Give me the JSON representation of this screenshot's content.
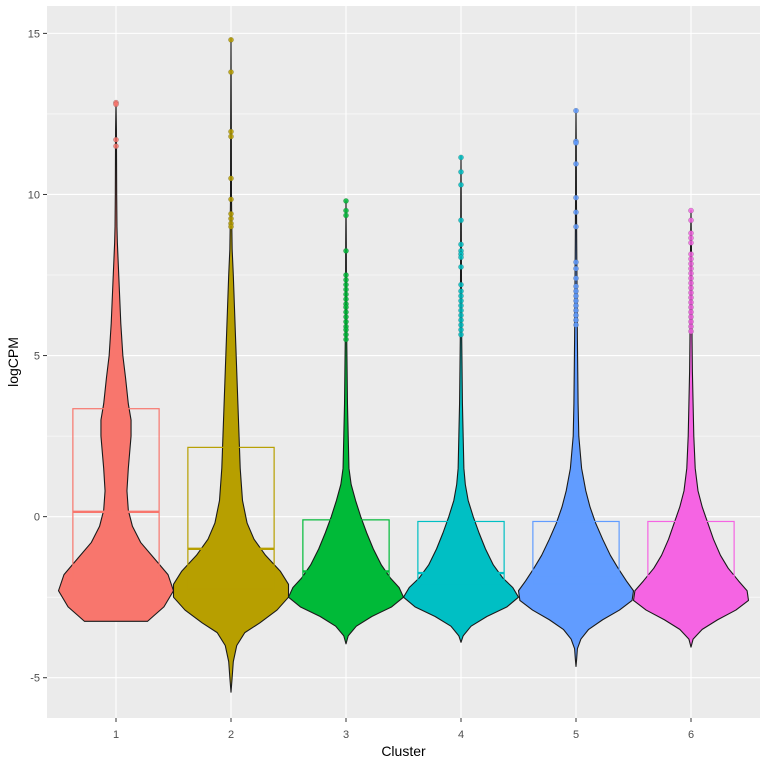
{
  "chart_data": {
    "type": "violin",
    "title": "",
    "xlabel": "Cluster",
    "ylabel": "logCPM",
    "ylim": [
      -6.25,
      15.85
    ],
    "yticks": [
      -5,
      0,
      5,
      10,
      15
    ],
    "categories": [
      "1",
      "2",
      "3",
      "4",
      "5",
      "6"
    ],
    "grid": true,
    "background": "#ebebeb",
    "colors": [
      "#f8766d",
      "#b79f00",
      "#00ba38",
      "#00bfc4",
      "#619cff",
      "#f564e3"
    ],
    "boxes": [
      {
        "cluster": "1",
        "q1": -2.0,
        "median": 0.15,
        "q3": 3.35
      },
      {
        "cluster": "2",
        "q1": -2.25,
        "median": -1.0,
        "q3": 2.15
      },
      {
        "cluster": "3",
        "q1": -2.1,
        "median": -1.7,
        "q3": -0.1
      },
      {
        "cluster": "4",
        "q1": -2.1,
        "median": -1.75,
        "q3": -0.15
      },
      {
        "cluster": "5",
        "q1": -2.1,
        "median": -1.9,
        "q3": -0.15
      },
      {
        "cluster": "6",
        "q1": -2.1,
        "median": -1.85,
        "q3": -0.15
      }
    ],
    "violins": [
      {
        "cluster": "1",
        "profile": [
          [
            -3.25,
            0.23
          ],
          [
            -3.1,
            0.27
          ],
          [
            -2.8,
            0.35
          ],
          [
            -2.3,
            0.42
          ],
          [
            -1.8,
            0.38
          ],
          [
            -1.3,
            0.28
          ],
          [
            -0.8,
            0.18
          ],
          [
            -0.3,
            0.12
          ],
          [
            0.2,
            0.09
          ],
          [
            0.8,
            0.08
          ],
          [
            1.5,
            0.09
          ],
          [
            2.5,
            0.11
          ],
          [
            3.0,
            0.11
          ],
          [
            3.5,
            0.09
          ],
          [
            4.3,
            0.07
          ],
          [
            5.0,
            0.05
          ],
          [
            6.0,
            0.035
          ],
          [
            7.0,
            0.025
          ],
          [
            8.0,
            0.015
          ],
          [
            8.5,
            0.01
          ],
          [
            9.0,
            0.007
          ],
          [
            10.0,
            0.005
          ],
          [
            11.0,
            0.004
          ],
          [
            12.0,
            0.003
          ],
          [
            12.85,
            0.0
          ]
        ]
      },
      {
        "cluster": "2",
        "profile": [
          [
            -5.45,
            0.0
          ],
          [
            -5.0,
            0.01
          ],
          [
            -4.5,
            0.02
          ],
          [
            -4.0,
            0.05
          ],
          [
            -3.6,
            0.12
          ],
          [
            -3.3,
            0.25
          ],
          [
            -2.9,
            0.4
          ],
          [
            -2.5,
            0.5
          ],
          [
            -2.1,
            0.5
          ],
          [
            -1.7,
            0.43
          ],
          [
            -1.2,
            0.3
          ],
          [
            -0.7,
            0.2
          ],
          [
            -0.2,
            0.14
          ],
          [
            0.5,
            0.1
          ],
          [
            1.5,
            0.08
          ],
          [
            2.5,
            0.07
          ],
          [
            3.5,
            0.06
          ],
          [
            4.5,
            0.05
          ],
          [
            5.5,
            0.04
          ],
          [
            6.5,
            0.03
          ],
          [
            7.5,
            0.02
          ],
          [
            8.3,
            0.01
          ],
          [
            9.0,
            0.007
          ],
          [
            10.0,
            0.004
          ],
          [
            12.0,
            0.003
          ],
          [
            14.85,
            0.0
          ]
        ]
      },
      {
        "cluster": "3",
        "profile": [
          [
            -3.95,
            0.0
          ],
          [
            -3.7,
            0.03
          ],
          [
            -3.4,
            0.14
          ],
          [
            -3.1,
            0.35
          ],
          [
            -2.8,
            0.62
          ],
          [
            -2.5,
            0.78
          ],
          [
            -2.2,
            0.72
          ],
          [
            -1.9,
            0.6
          ],
          [
            -1.5,
            0.48
          ],
          [
            -1.0,
            0.37
          ],
          [
            -0.5,
            0.28
          ],
          [
            0.0,
            0.2
          ],
          [
            0.5,
            0.13
          ],
          [
            1.0,
            0.07
          ],
          [
            1.5,
            0.04
          ],
          [
            2.5,
            0.03
          ],
          [
            3.5,
            0.02
          ],
          [
            4.5,
            0.015
          ],
          [
            5.5,
            0.01
          ],
          [
            7.0,
            0.006
          ],
          [
            8.5,
            0.004
          ],
          [
            9.8,
            0.0
          ]
        ]
      },
      {
        "cluster": "4",
        "profile": [
          [
            -3.9,
            0.0
          ],
          [
            -3.7,
            0.03
          ],
          [
            -3.4,
            0.14
          ],
          [
            -3.1,
            0.36
          ],
          [
            -2.8,
            0.64
          ],
          [
            -2.5,
            0.8
          ],
          [
            -2.2,
            0.72
          ],
          [
            -1.9,
            0.58
          ],
          [
            -1.5,
            0.45
          ],
          [
            -1.0,
            0.34
          ],
          [
            -0.5,
            0.25
          ],
          [
            0.0,
            0.17
          ],
          [
            0.5,
            0.1
          ],
          [
            1.0,
            0.06
          ],
          [
            1.5,
            0.04
          ],
          [
            2.5,
            0.03
          ],
          [
            3.5,
            0.02
          ],
          [
            4.5,
            0.015
          ],
          [
            5.5,
            0.01
          ],
          [
            7.0,
            0.007
          ],
          [
            8.5,
            0.005
          ],
          [
            10.0,
            0.003
          ],
          [
            11.2,
            0.0
          ]
        ]
      },
      {
        "cluster": "5",
        "profile": [
          [
            -4.65,
            0.0
          ],
          [
            -4.4,
            0.01
          ],
          [
            -4.1,
            0.02
          ],
          [
            -3.8,
            0.07
          ],
          [
            -3.5,
            0.18
          ],
          [
            -3.2,
            0.38
          ],
          [
            -2.9,
            0.62
          ],
          [
            -2.6,
            0.8
          ],
          [
            -2.3,
            0.82
          ],
          [
            -2.0,
            0.72
          ],
          [
            -1.6,
            0.6
          ],
          [
            -1.2,
            0.49
          ],
          [
            -0.7,
            0.38
          ],
          [
            -0.2,
            0.28
          ],
          [
            0.3,
            0.2
          ],
          [
            0.8,
            0.14
          ],
          [
            1.5,
            0.08
          ],
          [
            2.5,
            0.04
          ],
          [
            3.5,
            0.03
          ],
          [
            4.5,
            0.025
          ],
          [
            5.5,
            0.02
          ],
          [
            7.0,
            0.015
          ],
          [
            8.5,
            0.01
          ],
          [
            10.0,
            0.006
          ],
          [
            11.5,
            0.004
          ],
          [
            12.65,
            0.0
          ]
        ]
      },
      {
        "cluster": "6",
        "profile": [
          [
            -4.05,
            0.0
          ],
          [
            -3.8,
            0.03
          ],
          [
            -3.5,
            0.16
          ],
          [
            -3.2,
            0.38
          ],
          [
            -2.9,
            0.64
          ],
          [
            -2.6,
            0.82
          ],
          [
            -2.3,
            0.8
          ],
          [
            -2.0,
            0.68
          ],
          [
            -1.6,
            0.53
          ],
          [
            -1.2,
            0.42
          ],
          [
            -0.7,
            0.32
          ],
          [
            -0.2,
            0.24
          ],
          [
            0.3,
            0.16
          ],
          [
            0.8,
            0.1
          ],
          [
            1.5,
            0.06
          ],
          [
            2.5,
            0.04
          ],
          [
            3.5,
            0.03
          ],
          [
            4.5,
            0.02
          ],
          [
            5.5,
            0.015
          ],
          [
            7.0,
            0.01
          ],
          [
            8.5,
            0.006
          ],
          [
            9.5,
            0.0
          ]
        ]
      }
    ],
    "outliers": [
      {
        "cluster": "1",
        "values": [
          12.85,
          12.8,
          11.7,
          11.5
        ]
      },
      {
        "cluster": "2",
        "values": [
          14.8,
          13.8,
          11.95,
          11.8,
          10.5,
          9.85,
          9.4,
          9.25,
          9.1,
          9.0
        ]
      },
      {
        "cluster": "3",
        "values": [
          9.8,
          9.5,
          9.35,
          8.25,
          7.5,
          7.35,
          7.2,
          7.05,
          6.9,
          6.75,
          6.6,
          6.5,
          6.35,
          6.2,
          6.05,
          5.9,
          5.8,
          5.65,
          5.5
        ]
      },
      {
        "cluster": "4",
        "values": [
          11.15,
          10.7,
          10.3,
          9.2,
          8.45,
          8.25,
          8.15,
          8.05,
          7.75,
          7.2,
          7.0,
          6.85,
          6.7,
          6.55,
          6.4,
          6.25,
          6.1,
          5.95,
          5.8,
          5.65
        ]
      },
      {
        "cluster": "5",
        "values": [
          12.6,
          11.65,
          11.6,
          10.95,
          9.9,
          9.45,
          9.0,
          7.9,
          7.7,
          7.4,
          7.15,
          7.0,
          6.85,
          6.7,
          6.55,
          6.4,
          6.25,
          6.1,
          5.95
        ]
      },
      {
        "cluster": "6",
        "values": [
          9.5,
          9.2,
          8.8,
          8.65,
          8.5,
          8.15,
          8.0,
          7.85,
          7.7,
          7.55,
          7.4,
          7.25,
          7.1,
          6.95,
          6.8,
          6.65,
          6.5,
          6.35,
          6.2,
          6.05,
          5.9,
          5.75
        ]
      }
    ]
  }
}
